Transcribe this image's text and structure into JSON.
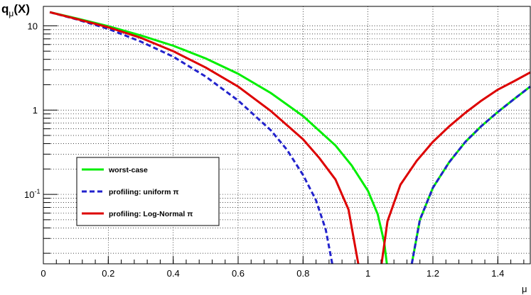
{
  "chart_data": {
    "type": "line",
    "title": "",
    "ylabel": "q_μ(X)",
    "ylabel_main": "q",
    "ylabel_sub": "μ",
    "ylabel_suffix": "(X)",
    "xlabel": "μ",
    "y_scale": "log",
    "xlim": [
      0,
      1.5
    ],
    "ylim": [
      0.015,
      17
    ],
    "grid": true,
    "legend_position": "lower-left",
    "x_ticks": [
      0,
      0.2,
      0.4,
      0.6,
      0.8,
      1,
      1.2,
      1.4
    ],
    "x_tick_labels": [
      "0",
      "0.2",
      "0.4",
      "0.6",
      "0.8",
      "1",
      "1.2",
      "1.4"
    ],
    "y_ticks": [
      10,
      1,
      0.1
    ],
    "y_tick_labels": [
      {
        "base": "10",
        "exp": ""
      },
      {
        "base": "1",
        "exp": ""
      },
      {
        "base": "10",
        "exp": "-1"
      }
    ],
    "series": [
      {
        "name": "worst-case",
        "color": "#00ee00",
        "dash": "solid",
        "points": [
          [
            0.02,
            14.5
          ],
          [
            0.1,
            12.3
          ],
          [
            0.2,
            9.9
          ],
          [
            0.3,
            7.7
          ],
          [
            0.4,
            5.8
          ],
          [
            0.5,
            4.1
          ],
          [
            0.6,
            2.7
          ],
          [
            0.7,
            1.6
          ],
          [
            0.8,
            0.85
          ],
          [
            0.9,
            0.38
          ],
          [
            0.95,
            0.22
          ],
          [
            1.0,
            0.11
          ],
          [
            1.03,
            0.058
          ],
          [
            1.05,
            0.027
          ],
          [
            1.058,
            0.015
          ]
        ]
      },
      {
        "name": "profiling: uniform π",
        "color": "#2222cc",
        "dash": "dashed",
        "points": [
          [
            0.02,
            14.5
          ],
          [
            0.1,
            12.0
          ],
          [
            0.2,
            9.2
          ],
          [
            0.3,
            6.5
          ],
          [
            0.4,
            4.3
          ],
          [
            0.5,
            2.5
          ],
          [
            0.6,
            1.3
          ],
          [
            0.7,
            0.58
          ],
          [
            0.75,
            0.34
          ],
          [
            0.8,
            0.17
          ],
          [
            0.84,
            0.085
          ],
          [
            0.87,
            0.038
          ],
          [
            0.89,
            0.015
          ]
        ]
      },
      {
        "name": "profiling: Log-Normal π",
        "color": "#dd0000",
        "dash": "solid",
        "points": [
          [
            0.02,
            14.5
          ],
          [
            0.1,
            12.1
          ],
          [
            0.2,
            9.6
          ],
          [
            0.3,
            7.2
          ],
          [
            0.4,
            5.0
          ],
          [
            0.5,
            3.2
          ],
          [
            0.6,
            1.9
          ],
          [
            0.7,
            0.98
          ],
          [
            0.8,
            0.45
          ],
          [
            0.85,
            0.27
          ],
          [
            0.9,
            0.15
          ],
          [
            0.94,
            0.066
          ],
          [
            0.97,
            0.015
          ]
        ]
      },
      {
        "name": "profiling: Log-Normal π (rising branch)",
        "color": "#dd0000",
        "dash": "solid",
        "legend": false,
        "points": [
          [
            1.042,
            0.015
          ],
          [
            1.06,
            0.048
          ],
          [
            1.1,
            0.13
          ],
          [
            1.15,
            0.25
          ],
          [
            1.2,
            0.42
          ],
          [
            1.25,
            0.64
          ],
          [
            1.3,
            0.93
          ],
          [
            1.35,
            1.3
          ],
          [
            1.4,
            1.75
          ],
          [
            1.45,
            2.2
          ],
          [
            1.5,
            2.8
          ]
        ]
      },
      {
        "name": "profiling (rising branch)",
        "color": "#00ee00",
        "dash": "solid",
        "legend": false,
        "overlay_color": "#2222cc",
        "points": [
          [
            1.135,
            0.015
          ],
          [
            1.16,
            0.05
          ],
          [
            1.2,
            0.12
          ],
          [
            1.25,
            0.24
          ],
          [
            1.3,
            0.42
          ],
          [
            1.35,
            0.65
          ],
          [
            1.4,
            0.95
          ],
          [
            1.45,
            1.35
          ],
          [
            1.5,
            1.9
          ]
        ]
      }
    ],
    "legend": [
      {
        "label": "worst-case",
        "color": "#00ee00",
        "dash": "solid"
      },
      {
        "label": "profiling: uniform π",
        "color": "#2222cc",
        "dash": "dashed"
      },
      {
        "label": "profiling: Log-Normal π",
        "color": "#dd0000",
        "dash": "solid"
      }
    ]
  }
}
